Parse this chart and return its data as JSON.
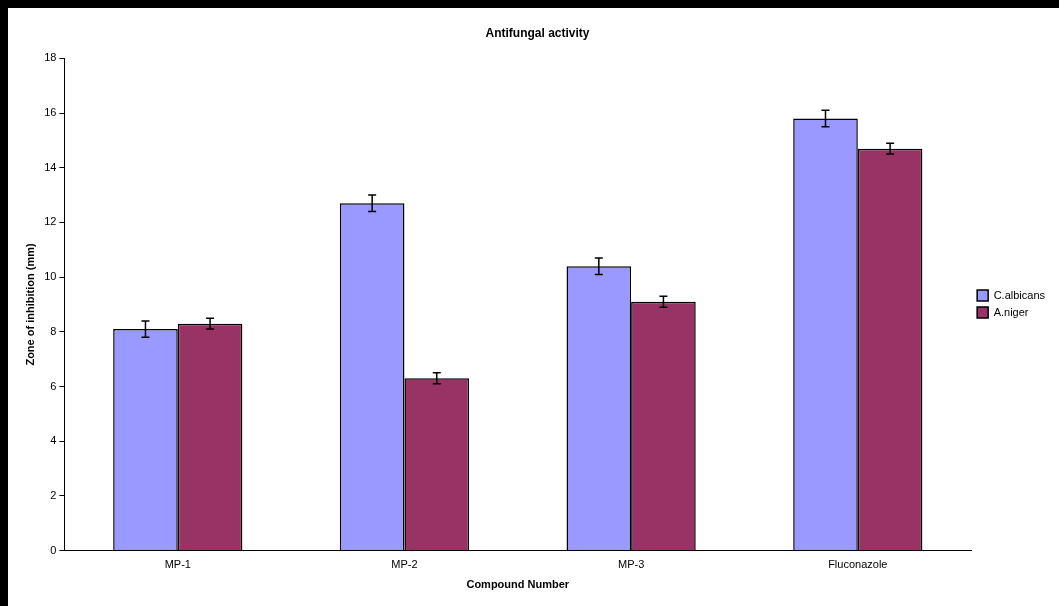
{
  "chart_data": {
    "type": "bar",
    "title": "Antifungal activity",
    "xlabel": "Compound Number",
    "ylabel": "Zone of inhibition (mm)",
    "categories": [
      "MP-1",
      "MP-2",
      "MP-3",
      "Fluconazole"
    ],
    "series": [
      {
        "name": "C.albicans",
        "color": "#9999ff",
        "values": [
          8.1,
          12.7,
          10.4,
          15.8
        ],
        "errors": [
          0.3,
          0.3,
          0.3,
          0.3
        ]
      },
      {
        "name": "A.niger",
        "color": "#993366",
        "values": [
          8.3,
          6.3,
          9.1,
          14.7
        ],
        "errors": [
          0.2,
          0.2,
          0.2,
          0.2
        ]
      }
    ],
    "ylim": [
      0,
      18
    ],
    "yticks": [
      0,
      2,
      4,
      6,
      8,
      10,
      12,
      14,
      16,
      18
    ],
    "grid": false,
    "legend": "right"
  }
}
